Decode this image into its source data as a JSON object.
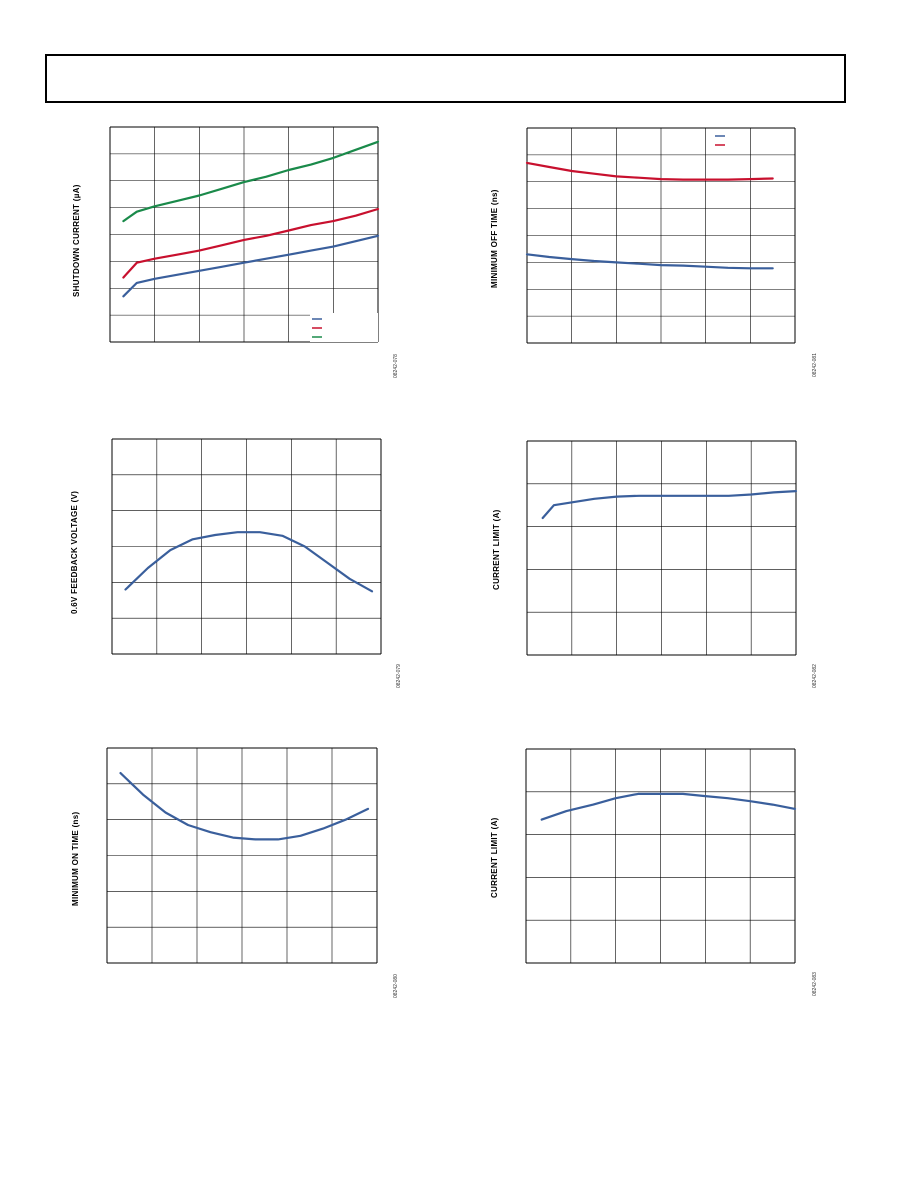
{
  "colors": {
    "blue": "#3a5f9c",
    "red": "#c8102e",
    "green": "#1a8a4a",
    "grid": "#000000"
  },
  "charts": [
    {
      "id": "shutdown-current",
      "ylabel": "SHUTDOWN CURRENT (µA)",
      "fig_id": "08242-078",
      "legend": {
        "entries": 3,
        "placement": "bottom-right"
      }
    },
    {
      "id": "min-off-time",
      "ylabel": "MINIMUM OFF TIME (ns)",
      "fig_id": "08242-081",
      "legend": {
        "entries": 2,
        "placement": "top-right"
      }
    },
    {
      "id": "feedback-voltage",
      "ylabel": "0.6V FEEDBACK VOLTAGE (V)",
      "fig_id": "08242-079"
    },
    {
      "id": "current-limit-1",
      "ylabel": "CURRENT LIMIT (A)",
      "fig_id": "08242-082"
    },
    {
      "id": "min-on-time",
      "ylabel": "MINIMUM ON TIME (ns)",
      "fig_id": "08242-080"
    },
    {
      "id": "current-limit-2",
      "ylabel": "CURRENT LIMIT (A)",
      "fig_id": "08242-083"
    }
  ],
  "chart_data": [
    {
      "type": "line",
      "title": "",
      "ylabel": "SHUTDOWN CURRENT (µA)",
      "xlabel": "",
      "grid": true,
      "legend_placement": "bottom-right",
      "xlim": [
        0,
        6
      ],
      "ylim": [
        0,
        8
      ],
      "series": [
        {
          "color": "blue",
          "x": [
            0.3,
            0.6,
            1,
            1.5,
            2,
            2.5,
            3,
            3.5,
            4,
            4.5,
            5,
            5.5,
            6
          ],
          "y": [
            1.7,
            2.2,
            2.35,
            2.5,
            2.65,
            2.8,
            2.95,
            3.1,
            3.25,
            3.4,
            3.55,
            3.75,
            3.95
          ]
        },
        {
          "color": "red",
          "x": [
            0.3,
            0.6,
            1,
            1.5,
            2,
            2.5,
            3,
            3.5,
            4,
            4.5,
            5,
            5.5,
            6
          ],
          "y": [
            2.4,
            2.95,
            3.1,
            3.25,
            3.4,
            3.6,
            3.8,
            3.95,
            4.15,
            4.35,
            4.5,
            4.7,
            4.95
          ]
        },
        {
          "color": "green",
          "x": [
            0.3,
            0.6,
            1,
            1.5,
            2,
            2.5,
            3,
            3.5,
            4,
            4.5,
            5,
            5.5,
            6
          ],
          "y": [
            4.5,
            4.85,
            5.05,
            5.25,
            5.45,
            5.7,
            5.95,
            6.15,
            6.4,
            6.6,
            6.85,
            7.15,
            7.45
          ]
        }
      ]
    },
    {
      "type": "line",
      "title": "",
      "ylabel": "MINIMUM OFF TIME (ns)",
      "xlabel": "",
      "grid": true,
      "legend_placement": "top-right",
      "xlim": [
        0,
        6
      ],
      "ylim": [
        0,
        8
      ],
      "series": [
        {
          "color": "blue",
          "x": [
            0,
            0.5,
            1,
            1.5,
            2,
            2.5,
            3,
            3.5,
            4,
            4.5,
            5,
            5.5
          ],
          "y": [
            3.3,
            3.2,
            3.12,
            3.05,
            3.0,
            2.95,
            2.9,
            2.88,
            2.84,
            2.8,
            2.78,
            2.78
          ]
        },
        {
          "color": "red",
          "x": [
            0,
            0.5,
            1,
            1.5,
            2,
            2.5,
            3,
            3.5,
            4,
            4.5,
            5,
            5.5
          ],
          "y": [
            6.7,
            6.55,
            6.4,
            6.3,
            6.2,
            6.15,
            6.1,
            6.08,
            6.08,
            6.08,
            6.1,
            6.12
          ]
        }
      ]
    },
    {
      "type": "line",
      "title": "",
      "ylabel": "0.6V FEEDBACK VOLTAGE (V)",
      "xlabel": "",
      "grid": true,
      "xlim": [
        0,
        6
      ],
      "ylim": [
        0,
        6
      ],
      "series": [
        {
          "color": "blue",
          "x": [
            0.3,
            0.8,
            1.3,
            1.8,
            2.3,
            2.8,
            3.3,
            3.8,
            4.3,
            4.8,
            5.3,
            5.8
          ],
          "y": [
            1.8,
            2.4,
            2.9,
            3.2,
            3.32,
            3.4,
            3.4,
            3.3,
            3.0,
            2.55,
            2.1,
            1.75
          ]
        }
      ]
    },
    {
      "type": "line",
      "title": "",
      "ylabel": "CURRENT LIMIT (A)",
      "xlabel": "",
      "grid": true,
      "xlim": [
        0,
        6
      ],
      "ylim": [
        0,
        5
      ],
      "series": [
        {
          "color": "blue",
          "x": [
            0.35,
            0.6,
            0.9,
            1.5,
            2,
            2.5,
            3,
            3.5,
            4,
            4.5,
            5,
            5.5,
            6
          ],
          "y": [
            3.2,
            3.5,
            3.55,
            3.65,
            3.7,
            3.72,
            3.72,
            3.72,
            3.72,
            3.72,
            3.75,
            3.8,
            3.83
          ]
        }
      ]
    },
    {
      "type": "line",
      "title": "",
      "ylabel": "MINIMUM ON TIME (ns)",
      "xlabel": "",
      "grid": true,
      "xlim": [
        0,
        6
      ],
      "ylim": [
        0,
        6
      ],
      "series": [
        {
          "color": "blue",
          "x": [
            0.3,
            0.8,
            1.3,
            1.8,
            2.3,
            2.8,
            3.3,
            3.8,
            4.3,
            4.8,
            5.3,
            5.8
          ],
          "y": [
            5.3,
            4.7,
            4.2,
            3.85,
            3.65,
            3.5,
            3.45,
            3.45,
            3.55,
            3.75,
            4.0,
            4.3
          ]
        }
      ]
    },
    {
      "type": "line",
      "title": "",
      "ylabel": "CURRENT LIMIT (A)",
      "xlabel": "",
      "grid": true,
      "xlim": [
        0,
        6
      ],
      "ylim": [
        0,
        5
      ],
      "series": [
        {
          "color": "blue",
          "x": [
            0.35,
            0.9,
            1.5,
            2,
            2.5,
            3,
            3.5,
            4,
            4.5,
            5,
            5.5,
            6
          ],
          "y": [
            3.35,
            3.55,
            3.7,
            3.85,
            3.95,
            3.95,
            3.95,
            3.9,
            3.85,
            3.78,
            3.7,
            3.6
          ]
        }
      ]
    }
  ]
}
